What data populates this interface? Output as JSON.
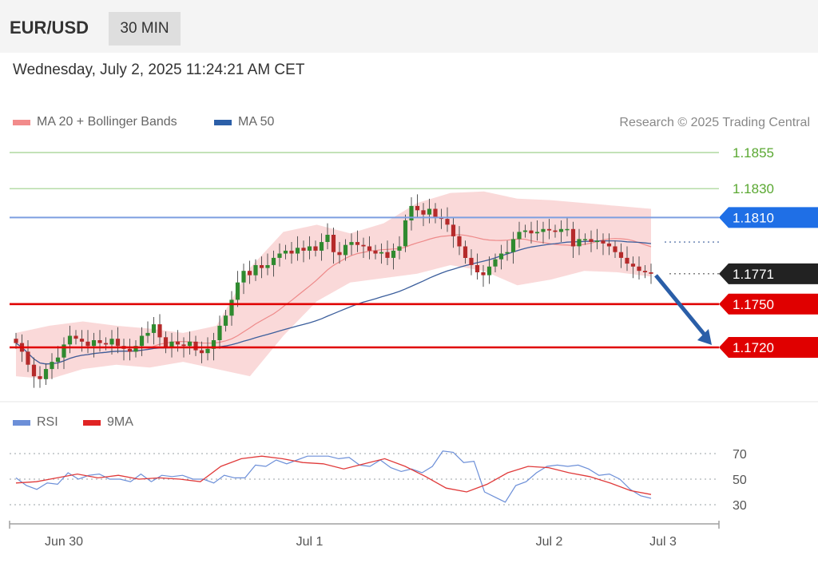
{
  "header": {
    "pair": "EUR/USD",
    "timeframe": "30 MIN"
  },
  "datetime": "Wednesday, July 2, 2025 11:24:21 AM CET",
  "legend": {
    "ma20": {
      "label": "MA 20 + Bollinger Bands",
      "color": "#f28b8b"
    },
    "ma50": {
      "label": "MA 50",
      "color": "#2c5fa8"
    }
  },
  "credit": "Research © 2025 Trading Central",
  "rsi_legend": {
    "rsi": {
      "label": "RSI",
      "color": "#6c8fd8"
    },
    "ma9": {
      "label": "9MA",
      "color": "#e02424"
    }
  },
  "levels": [
    {
      "value": 1.1855,
      "label": "1.1855",
      "kind": "target",
      "color": "#5aa832"
    },
    {
      "value": 1.183,
      "label": "1.1830",
      "kind": "target",
      "color": "#5aa832"
    },
    {
      "value": 1.181,
      "label": "1.1810",
      "kind": "pivot",
      "color": "#1f6fe6"
    },
    {
      "value": 1.1771,
      "label": "1.1771",
      "kind": "last",
      "color": "#222222"
    },
    {
      "value": 1.175,
      "label": "1.1750",
      "kind": "support",
      "color": "#e00000"
    },
    {
      "value": 1.172,
      "label": "1.1720",
      "kind": "support",
      "color": "#e00000"
    }
  ],
  "rsi_levels": [
    "70",
    "50",
    "30"
  ],
  "x_labels": [
    {
      "text": "Jun 30",
      "bar": 8
    },
    {
      "text": "Jul 1",
      "bar": 49
    },
    {
      "text": "Jul 2",
      "bar": 89
    },
    {
      "text": "Jul 3",
      "bar": 108
    }
  ],
  "chart_data": {
    "type": "candlestick",
    "timeframe": "30 MIN",
    "ylim": [
      1.1685,
      1.1875
    ],
    "rsi_ylim": [
      25,
      75
    ],
    "closes": [
      1.1723,
      1.1717,
      1.1708,
      1.17,
      1.1698,
      1.1705,
      1.171,
      1.1713,
      1.1722,
      1.1728,
      1.1726,
      1.1724,
      1.1721,
      1.1725,
      1.1723,
      1.1722,
      1.1726,
      1.1721,
      1.1719,
      1.1717,
      1.1721,
      1.1728,
      1.173,
      1.1736,
      1.1727,
      1.172,
      1.1724,
      1.1722,
      1.1721,
      1.1724,
      1.1718,
      1.1716,
      1.1719,
      1.1725,
      1.1735,
      1.1742,
      1.1753,
      1.1765,
      1.1773,
      1.177,
      1.1777,
      1.1775,
      1.1777,
      1.1782,
      1.1785,
      1.1787,
      1.1785,
      1.1789,
      1.1787,
      1.179,
      1.1787,
      1.1793,
      1.1798,
      1.1786,
      1.1784,
      1.1791,
      1.1793,
      1.1791,
      1.179,
      1.1787,
      1.1785,
      1.1786,
      1.1782,
      1.1787,
      1.179,
      1.1808,
      1.1818,
      1.1815,
      1.1812,
      1.1816,
      1.181,
      1.1809,
      1.1805,
      1.1797,
      1.179,
      1.1782,
      1.1777,
      1.1772,
      1.177,
      1.1776,
      1.1781,
      1.1785,
      1.1786,
      1.1795,
      1.18,
      1.1801,
      1.1799,
      1.18,
      1.1802,
      1.1801,
      1.18,
      1.1802,
      1.1802,
      1.179,
      1.1795,
      1.1795,
      1.1793,
      1.1794,
      1.1792,
      1.179,
      1.1786,
      1.1782,
      1.1778,
      1.1776,
      1.1773,
      1.1772,
      1.1771
    ],
    "bands": {
      "upper": [
        1.173,
        1.1735,
        1.1738,
        1.1735,
        1.1733,
        1.173,
        1.1735,
        1.1775,
        1.18,
        1.1805,
        1.1799,
        1.1806,
        1.182,
        1.1827,
        1.1828,
        1.1823,
        1.1822,
        1.182,
        1.1818,
        1.1816
      ],
      "lower": [
        1.17,
        1.1698,
        1.1705,
        1.1708,
        1.1706,
        1.171,
        1.1705,
        1.17,
        1.1728,
        1.1752,
        1.1765,
        1.1768,
        1.1771,
        1.1777,
        1.1773,
        1.1763,
        1.1767,
        1.1773,
        1.1772,
        1.1769
      ]
    },
    "rsi": [
      51,
      45,
      42,
      47,
      46,
      55,
      50,
      53,
      54,
      50,
      50,
      48,
      54,
      48,
      53,
      52,
      53,
      50,
      50,
      47,
      53,
      51,
      51,
      61,
      60,
      65,
      62,
      65,
      68,
      68,
      68,
      66,
      67,
      61,
      60,
      65,
      59,
      56,
      58,
      55,
      60,
      72,
      71,
      63,
      64,
      40,
      36,
      32,
      45,
      48,
      55,
      60,
      61,
      60,
      61,
      58,
      53,
      54,
      50,
      42,
      37,
      35
    ],
    "rsi_ma": [
      47,
      48,
      51,
      54,
      51,
      53,
      50,
      51,
      50,
      48,
      60,
      66,
      68,
      66,
      63,
      62,
      58,
      62,
      66,
      60,
      52,
      43,
      40,
      46,
      55,
      60,
      59,
      55,
      52,
      47,
      41,
      38
    ],
    "projection": {
      "from": 1.1771,
      "to": 1.172
    }
  }
}
